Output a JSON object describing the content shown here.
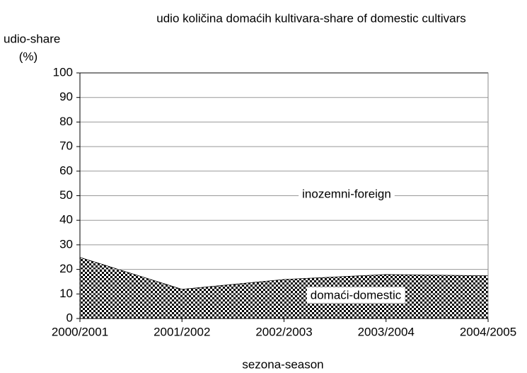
{
  "chart_data": {
    "type": "area",
    "stacked": true,
    "title": "udio količina domaćih kultivara-share of domestic cultivars",
    "y_label_lines": [
      "udio-share",
      "(%)"
    ],
    "x_label": "sezona-season",
    "categories": [
      "2000/2001",
      "2001/2002",
      "2002/2003",
      "2003/2004",
      "2004/2005"
    ],
    "series": [
      {
        "name": "domaći-domestic",
        "color": "#000000",
        "pattern": "checker",
        "values": [
          25,
          12,
          16,
          18,
          17.5
        ]
      },
      {
        "name": "inozemni-foreign",
        "color": "#ffffff",
        "values": [
          75,
          88,
          84,
          82,
          82.5
        ]
      }
    ],
    "ylim": [
      0,
      100
    ],
    "yticks": [
      0,
      10,
      20,
      30,
      40,
      50,
      60,
      70,
      80,
      90,
      100
    ],
    "grid": true
  }
}
